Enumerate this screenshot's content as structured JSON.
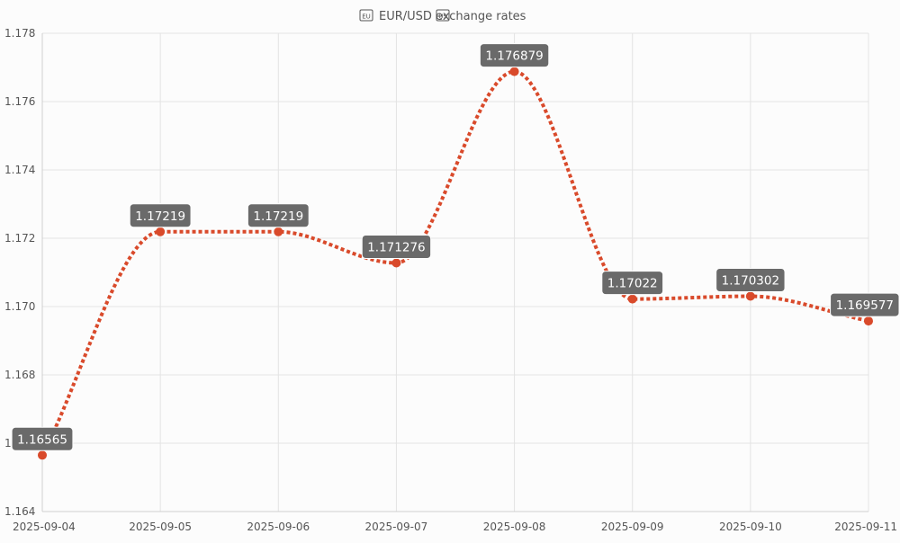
{
  "chart_data": {
    "type": "line",
    "title": "EUR/USD exchange rates",
    "title_icons": [
      "eu-flag-icon",
      "us-flag-icon"
    ],
    "x": [
      "2025-09-04",
      "2025-09-05",
      "2025-09-06",
      "2025-09-07",
      "2025-09-08",
      "2025-09-09",
      "2025-09-10",
      "2025-09-11"
    ],
    "series": [
      {
        "values": [
          1.16565,
          1.17219,
          1.17219,
          1.171276,
          1.176879,
          1.17022,
          1.170302,
          1.169577
        ],
        "labels": [
          "1.16565",
          "1.17219",
          "1.17219",
          "1.171276",
          "1.176879",
          "1.17022",
          "1.170302",
          "1.169577"
        ],
        "color": "#d94a2b",
        "line_style": "dotted",
        "smooth": true
      }
    ],
    "ylim": [
      1.164,
      1.178
    ],
    "yticks": [
      "1.164",
      "1.166",
      "1.168",
      "1.170",
      "1.172",
      "1.174",
      "1.176",
      "1.178"
    ],
    "grid": true,
    "colors": {
      "line": "#d94a2b",
      "point": "#d94a2b",
      "label_bg": "#6a6a6a",
      "label_text": "#ffffff",
      "grid": "#e3e3e3",
      "background": "#fcfcfc"
    }
  }
}
